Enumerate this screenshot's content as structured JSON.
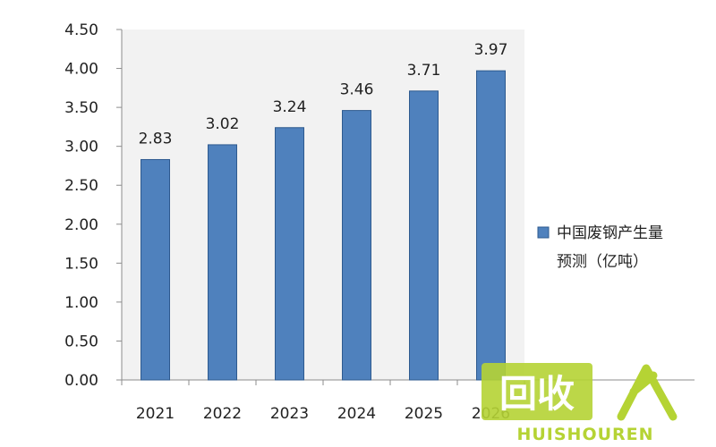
{
  "chart_data": {
    "type": "bar",
    "categories": [
      "2021",
      "2022",
      "2023",
      "2024",
      "2025",
      "2026"
    ],
    "series": [
      {
        "name": "中国废钢产生量预测（亿吨）",
        "values": [
          2.83,
          3.02,
          3.24,
          3.46,
          3.71,
          3.97
        ]
      }
    ],
    "data_labels": [
      "2.83",
      "3.02",
      "3.24",
      "3.46",
      "3.71",
      "3.97"
    ],
    "y_ticks": [
      "0.00",
      "0.50",
      "1.00",
      "1.50",
      "2.00",
      "2.50",
      "3.00",
      "3.50",
      "4.00",
      "4.50"
    ],
    "ylim": [
      0,
      4.5
    ],
    "title": "",
    "xlabel": "",
    "ylabel": "",
    "legend": {
      "position": "right",
      "line1": "中国废钢产生量",
      "line2": "预测（亿吨）"
    },
    "grid": false,
    "colors": {
      "bar": "#4f81bd",
      "bar_edge": "#2e5a8f",
      "plot_bg": "#f2f2f2"
    }
  },
  "watermark": {
    "logo_text": "回收",
    "brand_text": "HUISHOUREN",
    "color": "#b5d334"
  }
}
